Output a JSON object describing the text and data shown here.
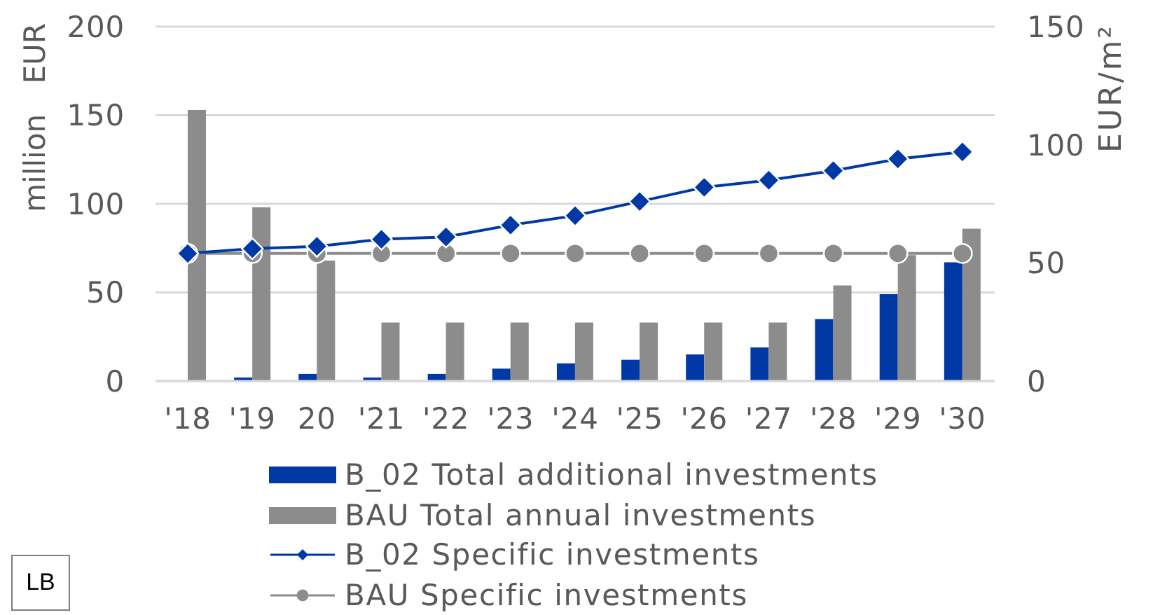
{
  "chart_data": {
    "type": "bar",
    "categories": [
      "'18",
      "'19",
      "20",
      "'21",
      "'22",
      "'23",
      "'24",
      "'25",
      "'26",
      "'27",
      "'28",
      "'29",
      "'30"
    ],
    "ylabel": "million EUR",
    "y2label": "EUR/m²",
    "ylim": [
      0,
      200
    ],
    "yticks": [
      0,
      50,
      100,
      150,
      200
    ],
    "y2lim": [
      0,
      150
    ],
    "y2ticks": [
      0,
      50,
      100,
      150
    ],
    "grid": "y",
    "legend": "bottom",
    "annotations": [
      "LB"
    ],
    "series": [
      {
        "name": "B_02 Total additional investments",
        "color": "#0039a6",
        "values": [
          null,
          2,
          4,
          2,
          4,
          7,
          10,
          12,
          15,
          19,
          35,
          49,
          67
        ]
      },
      {
        "name": "BAU Total annual investments",
        "color": "#8c8c8c",
        "values": [
          153,
          98,
          68,
          33,
          33,
          33,
          33,
          33,
          33,
          33,
          54,
          71,
          86
        ]
      },
      {
        "name": "B_02 Specific investments",
        "type": "line",
        "axis": "y2",
        "marker": "diamond",
        "color": "#0039a6",
        "values": [
          54,
          56,
          57,
          60,
          61,
          66,
          70,
          76,
          82,
          85,
          89,
          94,
          97
        ]
      },
      {
        "name": "BAU Specific investments",
        "type": "line",
        "axis": "y2",
        "marker": "circle",
        "color": "#8c8c8c",
        "values": [
          54,
          54,
          54,
          54,
          54,
          54,
          54,
          54,
          54,
          54,
          54,
          54,
          54
        ]
      }
    ]
  }
}
